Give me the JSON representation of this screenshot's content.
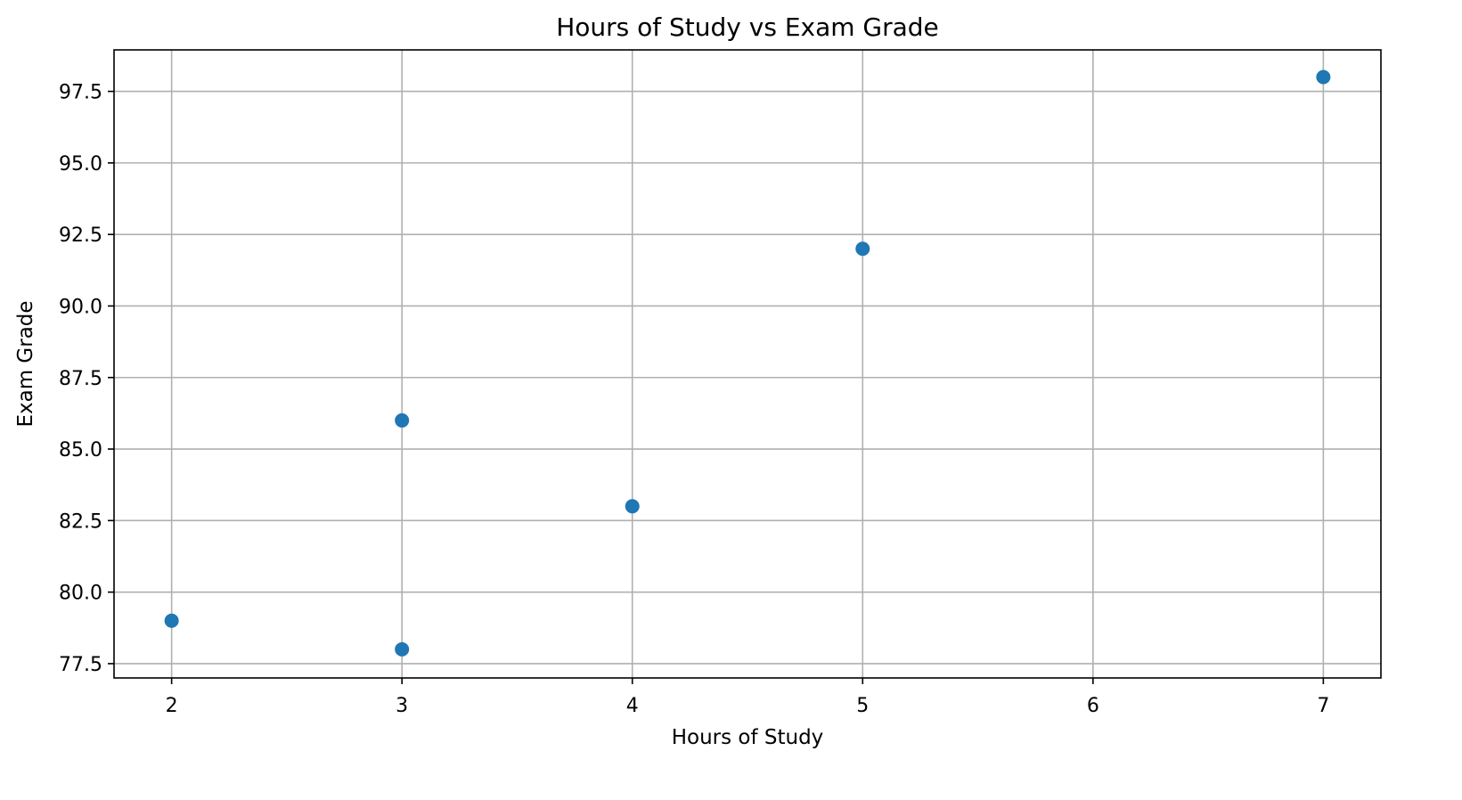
{
  "chart_data": {
    "type": "scatter",
    "title": "Hours of Study vs Exam Grade",
    "xlabel": "Hours of Study",
    "ylabel": "Exam Grade",
    "xlim": [
      1.75,
      7.25
    ],
    "ylim": [
      77.0,
      98.95
    ],
    "xticks": [
      2,
      3,
      4,
      5,
      6,
      7
    ],
    "yticks": [
      77.5,
      80.0,
      82.5,
      85.0,
      87.5,
      90.0,
      92.5,
      95.0,
      97.5
    ],
    "grid": true,
    "series": [
      {
        "color": "#1f77b4",
        "points": [
          {
            "x": 2,
            "y": 79
          },
          {
            "x": 3,
            "y": 86
          },
          {
            "x": 3,
            "y": 78
          },
          {
            "x": 4,
            "y": 83
          },
          {
            "x": 5,
            "y": 92
          },
          {
            "x": 7,
            "y": 98
          }
        ]
      }
    ]
  }
}
